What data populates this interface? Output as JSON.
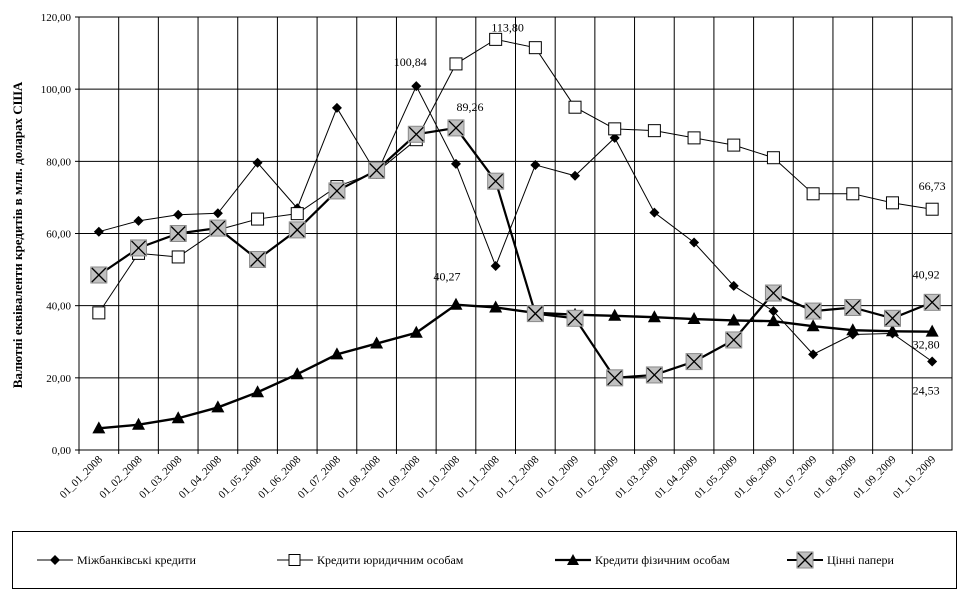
{
  "chart_data": {
    "type": "line",
    "ylabel": "Валютні еквіваленти кредитів в млн. доларах США",
    "xlabel": "",
    "title": "",
    "ylim": [
      0,
      120
    ],
    "yticks": [
      "0,00",
      "20,00",
      "40,00",
      "60,00",
      "80,00",
      "100,00",
      "120,00"
    ],
    "grid": true,
    "legend_position": "bottom",
    "categories": [
      "01_01_2008",
      "01_02_2008",
      "01_03_2008",
      "01_04_2008",
      "01_05_2008",
      "01_06_2008",
      "01_07_2008",
      "01_08_2008",
      "01_09_2008",
      "01_10_2008",
      "01_11_2008",
      "01_12_2008",
      "01_01_2009",
      "01_02_2009",
      "01_03_2009",
      "01_04_2009",
      "01_05_2009",
      "01_06_2009",
      "01_07_2009",
      "01_08_2009",
      "01_09_2009",
      "01_10_2009"
    ],
    "series": [
      {
        "name": "Міжбанківські кредити",
        "marker": "diamond",
        "color": "#000000",
        "values": [
          60.5,
          63.5,
          65.2,
          65.6,
          79.6,
          67.0,
          94.8,
          76.5,
          100.84,
          79.3,
          51.0,
          79.0,
          76.0,
          86.5,
          65.8,
          57.5,
          45.5,
          38.5,
          26.5,
          32.0,
          32.3,
          24.53
        ]
      },
      {
        "name": "Кредити юридичним особам",
        "marker": "square",
        "color": "#000000",
        "values": [
          38.0,
          54.5,
          53.5,
          61.0,
          64.0,
          65.5,
          73.0,
          77.0,
          86.0,
          107.0,
          113.8,
          111.5,
          95.0,
          89.0,
          88.5,
          86.5,
          84.5,
          81.0,
          71.0,
          71.0,
          68.5,
          66.73
        ]
      },
      {
        "name": "Кредити фізичним особам",
        "marker": "triangle",
        "color": "#000000",
        "values": [
          6.0,
          7.0,
          8.8,
          11.8,
          16.0,
          21.0,
          26.5,
          29.5,
          32.5,
          40.27,
          39.5,
          38.0,
          37.5,
          37.2,
          36.8,
          36.3,
          35.9,
          35.7,
          34.3,
          33.2,
          32.9,
          32.8
        ]
      },
      {
        "name": "Цінні папери",
        "marker": "xsquare",
        "color": "#000000",
        "values": [
          48.5,
          56.0,
          60.0,
          61.5,
          52.8,
          61.0,
          71.8,
          77.5,
          87.5,
          89.26,
          74.5,
          37.8,
          36.5,
          20.0,
          20.8,
          24.5,
          30.5,
          43.5,
          38.5,
          39.5,
          36.5,
          40.92
        ]
      }
    ],
    "annotations": [
      {
        "text": "100,84",
        "x": "01_09_2008",
        "y": 100.84
      },
      {
        "text": "113,80",
        "x": "01_11_2008",
        "y": 113.8
      },
      {
        "text": "89,26",
        "x": "01_10_2008",
        "y": 89.26
      },
      {
        "text": "40,27",
        "x": "01_10_2008",
        "y": 40.27
      },
      {
        "text": "66,73",
        "x": "01_10_2009",
        "y": 66.73
      },
      {
        "text": "40,92",
        "x": "01_10_2009",
        "y": 40.92
      },
      {
        "text": "32,80",
        "x": "01_10_2009",
        "y": 32.8
      },
      {
        "text": "24,53",
        "x": "01_10_2009",
        "y": 24.53
      }
    ]
  }
}
